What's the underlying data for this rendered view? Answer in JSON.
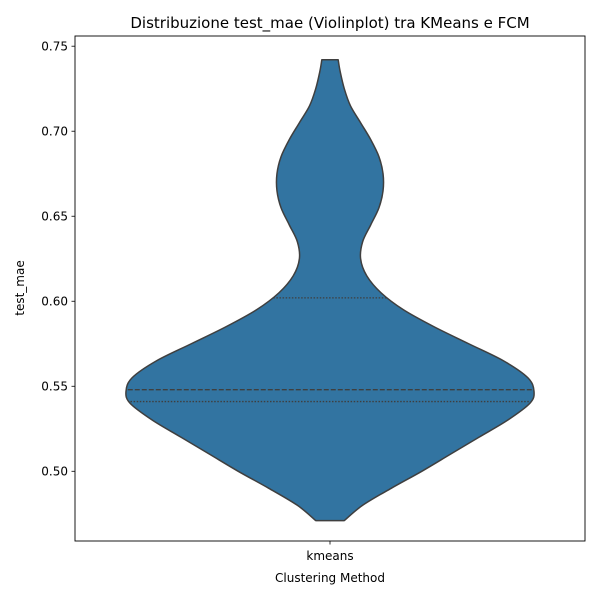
{
  "chart_data": {
    "type": "violin",
    "title": "Distribuzione test_mae (Violinplot) tra KMeans e FCM",
    "xlabel": "Clustering Method",
    "ylabel": "test_mae",
    "categories": [
      "kmeans"
    ],
    "ylim": [
      0.459,
      0.756
    ],
    "yticks": [
      0.5,
      0.55,
      0.6,
      0.65,
      0.7,
      0.75
    ],
    "ytick_labels": [
      "0.50",
      "0.55",
      "0.60",
      "0.65",
      "0.70",
      "0.75"
    ],
    "grid": false,
    "fill_color": "#3274a1",
    "edge_color": "#3f3f3f",
    "violins": [
      {
        "category": "kmeans",
        "min": 0.471,
        "max": 0.742,
        "q1": 0.541,
        "median": 0.548,
        "q3": 0.602,
        "density_profile": [
          [
            0.471,
            0.07
          ],
          [
            0.48,
            0.16
          ],
          [
            0.49,
            0.3
          ],
          [
            0.5,
            0.45
          ],
          [
            0.51,
            0.59
          ],
          [
            0.52,
            0.73
          ],
          [
            0.53,
            0.87
          ],
          [
            0.54,
            0.98
          ],
          [
            0.547,
            1.0
          ],
          [
            0.555,
            0.97
          ],
          [
            0.565,
            0.85
          ],
          [
            0.575,
            0.68
          ],
          [
            0.585,
            0.51
          ],
          [
            0.595,
            0.36
          ],
          [
            0.605,
            0.25
          ],
          [
            0.615,
            0.18
          ],
          [
            0.625,
            0.15
          ],
          [
            0.635,
            0.16
          ],
          [
            0.645,
            0.2
          ],
          [
            0.655,
            0.24
          ],
          [
            0.665,
            0.26
          ],
          [
            0.675,
            0.26
          ],
          [
            0.685,
            0.24
          ],
          [
            0.695,
            0.2
          ],
          [
            0.705,
            0.15
          ],
          [
            0.715,
            0.1
          ],
          [
            0.725,
            0.07
          ],
          [
            0.735,
            0.05
          ],
          [
            0.742,
            0.04
          ]
        ]
      }
    ]
  }
}
